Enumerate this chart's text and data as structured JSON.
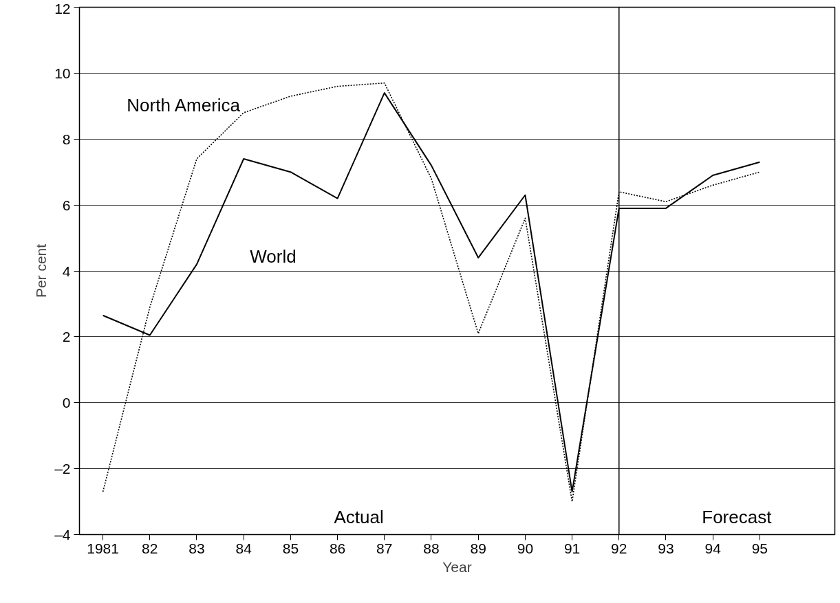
{
  "chart_data": {
    "type": "line",
    "xlabel": "Year",
    "ylabel": "Per cent",
    "x": [
      1981,
      1982,
      1983,
      1984,
      1985,
      1986,
      1987,
      1988,
      1989,
      1990,
      1991,
      1992,
      1993,
      1994,
      1995
    ],
    "series": [
      {
        "name": "World",
        "color": "#000000",
        "line_style": "solid",
        "values": [
          2.65,
          2.05,
          4.2,
          7.4,
          7.0,
          6.2,
          9.4,
          7.2,
          4.4,
          6.3,
          -2.7,
          5.9,
          5.9,
          6.9,
          7.3
        ]
      },
      {
        "name": "North America",
        "color": "#000000",
        "line_style": "dotted",
        "values": [
          -2.7,
          2.9,
          7.4,
          8.8,
          9.3,
          9.6,
          9.7,
          6.8,
          2.1,
          5.6,
          -3.0,
          6.4,
          6.1,
          6.6,
          7.0
        ]
      }
    ],
    "xlim": [
      1980.5,
      1996.6
    ],
    "ylim": [
      -4,
      12
    ],
    "xticks": [
      1981,
      {
        "value": 1982,
        "label": "82"
      },
      {
        "value": 1983,
        "label": "83"
      },
      {
        "value": 1984,
        "label": "84"
      },
      {
        "value": 1985,
        "label": "85"
      },
      {
        "value": 1986,
        "label": "86"
      },
      {
        "value": 1987,
        "label": "87"
      },
      {
        "value": 1988,
        "label": "88"
      },
      {
        "value": 1989,
        "label": "89"
      },
      {
        "value": 1990,
        "label": "90"
      },
      {
        "value": 1991,
        "label": "91"
      },
      {
        "value": 1992,
        "label": "92"
      },
      {
        "value": 1993,
        "label": "93"
      },
      {
        "value": 1994,
        "label": "94"
      },
      {
        "value": 1995,
        "label": "95"
      }
    ],
    "yticks": [
      {
        "value": -4,
        "label": "–4"
      },
      {
        "value": -2,
        "label": "–2"
      },
      0,
      2,
      4,
      6,
      8,
      10,
      12
    ],
    "ref_lines": [
      {
        "axis": "x",
        "value": 1992,
        "color": "#000000"
      }
    ],
    "annotations": [
      "Actual",
      "Forecast"
    ],
    "grid": "y",
    "legend": false
  }
}
